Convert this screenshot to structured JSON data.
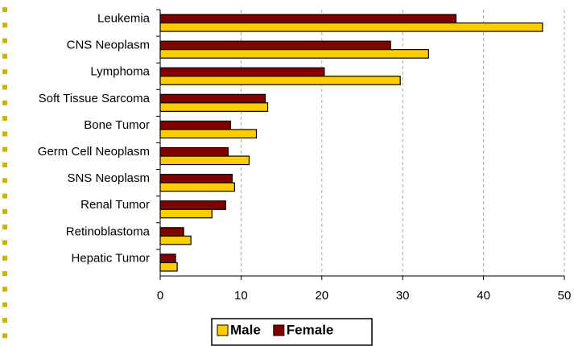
{
  "chart_data": {
    "type": "barh",
    "categories": [
      "Leukemia",
      "CNS Neoplasm",
      "Lymphoma",
      "Soft Tissue Sarcoma",
      "Bone Tumor",
      "Germ Cell Neoplasm",
      "SNS Neoplasm",
      "Renal Tumor",
      "Retinoblastoma",
      "Hepatic Tumor"
    ],
    "series": [
      {
        "name": "Male",
        "color": "#ffcc00",
        "values": [
          47.3,
          33.2,
          29.7,
          13.3,
          11.9,
          11.0,
          9.2,
          6.4,
          3.8,
          2.1
        ]
      },
      {
        "name": "Female",
        "color": "#800000",
        "values": [
          36.6,
          28.5,
          20.3,
          13.0,
          8.7,
          8.4,
          8.9,
          8.1,
          2.9,
          1.9
        ]
      }
    ],
    "xlim": [
      0,
      50
    ],
    "xticks": [
      0,
      10,
      20,
      30,
      40,
      50
    ],
    "grid": true,
    "legend": "bottom"
  }
}
